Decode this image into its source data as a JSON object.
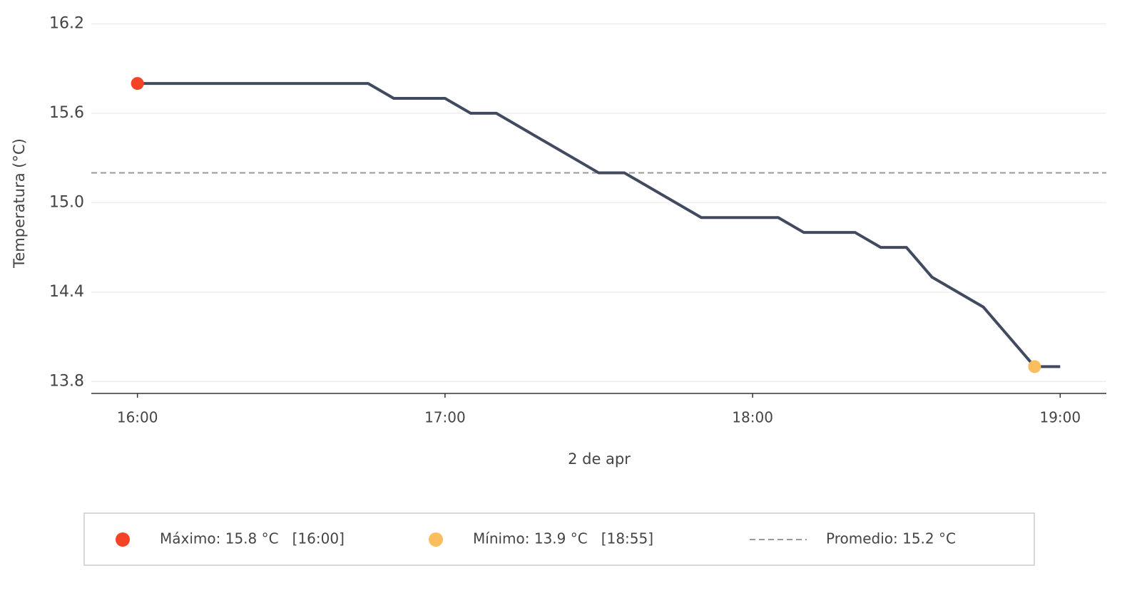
{
  "chart_data": {
    "type": "line",
    "x_label": "2 de apr",
    "y_label": "Temperatura (°C)",
    "x": [
      "16:00",
      "16:45",
      "16:50",
      "17:00",
      "17:05",
      "17:10",
      "17:30",
      "17:35",
      "17:50",
      "18:05",
      "18:10",
      "18:20",
      "18:25",
      "18:30",
      "18:35",
      "18:45",
      "18:55",
      "19:00"
    ],
    "series": [
      {
        "color": "#424a60",
        "values": [
          15.8,
          15.8,
          15.7,
          15.7,
          15.6,
          15.6,
          15.2,
          15.2,
          14.9,
          14.9,
          14.8,
          14.8,
          14.7,
          14.7,
          14.5,
          14.3,
          13.9,
          13.9
        ]
      }
    ],
    "xlim": [
      "15:51",
      "19:09"
    ],
    "xticks": [
      "16:00",
      "17:00",
      "18:00",
      "19:00"
    ],
    "ylim": [
      13.72,
      16.36
    ],
    "yticks": [
      {
        "value": 13.8,
        "label": "13.8"
      },
      {
        "value": 14.4,
        "label": "14.4"
      },
      {
        "value": 15.0,
        "label": "15.0"
      },
      {
        "value": 15.6,
        "label": "15.6"
      },
      {
        "value": 16.2,
        "label": "16.2"
      }
    ],
    "grid": true,
    "markers": [
      {
        "label": "Máximo: 15.8 °C   [16:00]",
        "x": "16:00",
        "y": 15.8,
        "color": "#f44325"
      },
      {
        "label": "Mínimo: 13.9 °C   [18:55]",
        "x": "18:55",
        "y": 13.9,
        "color": "#fbbd5e"
      }
    ],
    "average": {
      "label": "Promedio: 15.2 °C",
      "value": 15.2,
      "color": "#999999"
    },
    "legend": "bottom"
  }
}
